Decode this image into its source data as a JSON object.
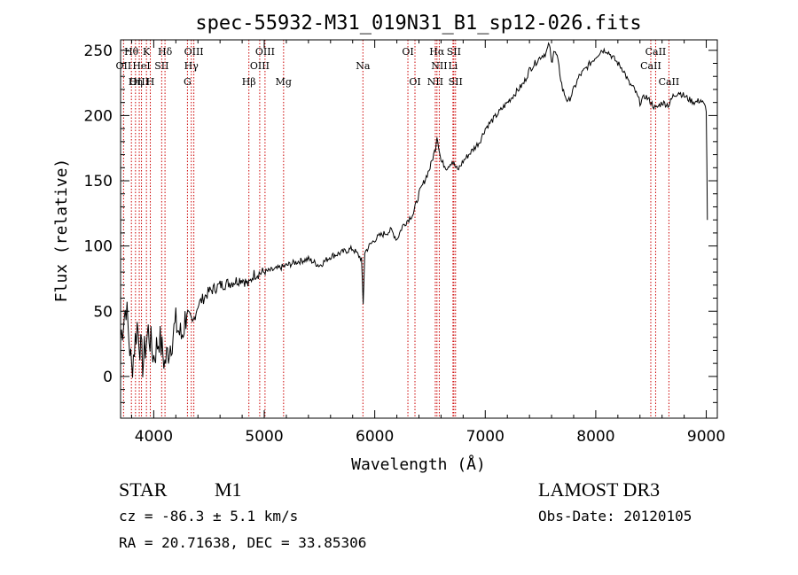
{
  "colors": {
    "foreground": "#000000",
    "background": "#ffffff",
    "line_marker": "#cc0000"
  },
  "chart_data": {
    "type": "line",
    "title": "spec-55932-M31_019N31_B1_sp12-026.fits",
    "xlabel": "Wavelength (Å)",
    "ylabel": "Flux (relative)",
    "xlim": [
      3700,
      9100
    ],
    "ylim": [
      -32,
      258
    ],
    "xticks": [
      4000,
      5000,
      6000,
      7000,
      8000,
      9000
    ],
    "yticks": [
      0,
      50,
      100,
      150,
      200,
      250
    ],
    "grid": false,
    "series": [
      {
        "name": "spectrum",
        "x": [
          3700,
          3750,
          3800,
          3850,
          3900,
          3950,
          4000,
          4050,
          4100,
          4150,
          4200,
          4250,
          4300,
          4350,
          4400,
          4450,
          4500,
          4600,
          4700,
          4800,
          4860,
          4900,
          5000,
          5100,
          5200,
          5300,
          5400,
          5500,
          5600,
          5700,
          5800,
          5880,
          5895,
          5910,
          5950,
          6000,
          6050,
          6100,
          6150,
          6200,
          6250,
          6300,
          6350,
          6400,
          6450,
          6500,
          6550,
          6563,
          6600,
          6650,
          6700,
          6750,
          6800,
          6850,
          6900,
          6950,
          7000,
          7050,
          7100,
          7150,
          7200,
          7250,
          7300,
          7350,
          7400,
          7450,
          7500,
          7550,
          7580,
          7600,
          7620,
          7650,
          7700,
          7750,
          7800,
          7850,
          7900,
          7950,
          8000,
          8050,
          8100,
          8150,
          8200,
          8250,
          8300,
          8350,
          8400,
          8450,
          8500,
          8542,
          8600,
          8662,
          8700,
          8750,
          8800,
          8850,
          8900,
          8950,
          9000,
          9010
        ],
        "y": [
          30,
          55,
          5,
          40,
          10,
          35,
          15,
          30,
          10,
          25,
          40,
          30,
          50,
          40,
          55,
          60,
          65,
          70,
          72,
          75,
          70,
          78,
          80,
          82,
          85,
          88,
          90,
          85,
          92,
          95,
          98,
          90,
          55,
          95,
          100,
          105,
          108,
          110,
          112,
          105,
          115,
          120,
          125,
          140,
          150,
          160,
          175,
          185,
          165,
          160,
          165,
          158,
          165,
          170,
          175,
          180,
          190,
          195,
          200,
          205,
          210,
          215,
          220,
          225,
          235,
          240,
          245,
          248,
          255,
          240,
          250,
          245,
          220,
          210,
          220,
          230,
          235,
          240,
          245,
          250,
          250,
          245,
          240,
          235,
          225,
          220,
          210,
          215,
          210,
          205,
          210,
          208,
          215,
          218,
          215,
          212,
          210,
          212,
          205,
          120
        ]
      }
    ],
    "line_markers": [
      {
        "label": "Hθ",
        "wavelength": 3798,
        "row": 0
      },
      {
        "label": "K",
        "wavelength": 3934,
        "row": 0
      },
      {
        "label": "Hδ",
        "wavelength": 4102,
        "row": 0
      },
      {
        "label": "OIII",
        "wavelength": 4363,
        "row": 0
      },
      {
        "label": "OIII",
        "wavelength": 5007,
        "row": 0
      },
      {
        "label": "OI",
        "wavelength": 6300,
        "row": 0
      },
      {
        "label": "Hα",
        "wavelength": 6563,
        "row": 0
      },
      {
        "label": "SII",
        "wavelength": 6716,
        "row": 0
      },
      {
        "label": "CaII",
        "wavelength": 8542,
        "row": 0
      },
      {
        "label": "OII",
        "wavelength": 3727,
        "row": 1
      },
      {
        "label": "HeI",
        "wavelength": 3889,
        "row": 1
      },
      {
        "label": "SII",
        "wavelength": 4072,
        "row": 1
      },
      {
        "label": "Hγ",
        "wavelength": 4340,
        "row": 1
      },
      {
        "label": "OIII",
        "wavelength": 4959,
        "row": 1
      },
      {
        "label": "Na",
        "wavelength": 5893,
        "row": 1
      },
      {
        "label": "NII",
        "wavelength": 6584,
        "row": 1
      },
      {
        "label": "Li",
        "wavelength": 6708,
        "row": 1
      },
      {
        "label": "CaII",
        "wavelength": 8498,
        "row": 1
      },
      {
        "label": "OIII",
        "wavelength": 3869,
        "row": 2
      },
      {
        "label": "Hη",
        "wavelength": 3835,
        "row": 2
      },
      {
        "label": "H",
        "wavelength": 3969,
        "row": 2
      },
      {
        "label": "G",
        "wavelength": 4305,
        "row": 2
      },
      {
        "label": "Hβ",
        "wavelength": 4861,
        "row": 2
      },
      {
        "label": "Mg",
        "wavelength": 5175,
        "row": 2
      },
      {
        "label": "OI",
        "wavelength": 6364,
        "row": 2
      },
      {
        "label": "NII",
        "wavelength": 6548,
        "row": 2
      },
      {
        "label": "SII",
        "wavelength": 6731,
        "row": 2
      },
      {
        "label": "CaII",
        "wavelength": 8662,
        "row": 2
      }
    ]
  },
  "info": {
    "object_class": "STAR",
    "subclass": "M1",
    "survey": "LAMOST DR3",
    "cz": "cz = -86.3 ± 5.1 km/s",
    "obs_date": "Obs-Date: 20120105",
    "coords": "RA =  20.71638, DEC =  33.85306"
  }
}
